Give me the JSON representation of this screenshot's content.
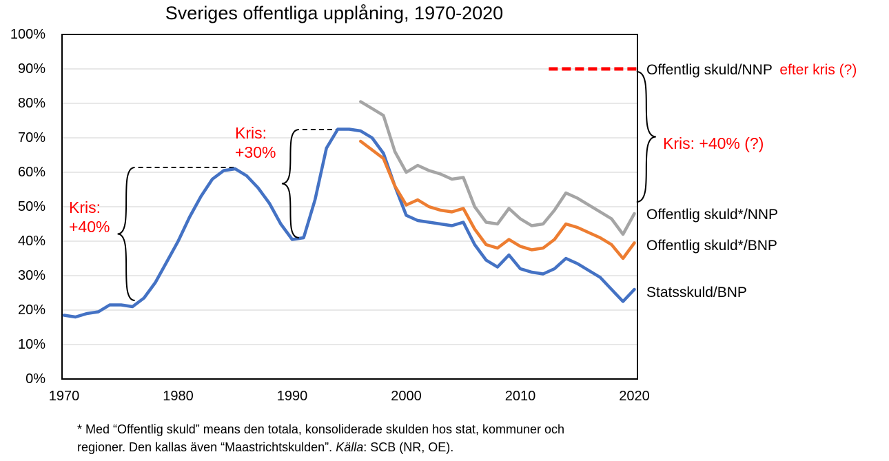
{
  "title": "Sveriges offentliga upplåning, 1970-2020",
  "chart_data": {
    "type": "line",
    "title": "Sveriges offentliga upplåning, 1970-2020",
    "xlim": [
      1970,
      2020.3
    ],
    "ylim": [
      0,
      100
    ],
    "grid": "horizontal",
    "grid_color": "#D9D9D9",
    "x_ticks": [
      1970,
      1980,
      1990,
      2000,
      2010,
      2020
    ],
    "y_ticks": [
      0,
      10,
      20,
      30,
      40,
      50,
      60,
      70,
      80,
      90,
      100
    ],
    "y_tick_suffix": "%",
    "series": [
      {
        "name": "Statsskuld/BNP",
        "color": "#4472C4",
        "start_year": 1970,
        "values": [
          18.5,
          18,
          19,
          19.5,
          21.5,
          21.5,
          21,
          23.5,
          28,
          34,
          40,
          47,
          53,
          58,
          60.5,
          61,
          59,
          55.5,
          51,
          45,
          40.5,
          41,
          52,
          67,
          72.5,
          72.5,
          72,
          70,
          65.5,
          56,
          47.5,
          46,
          45.5,
          45,
          44.5,
          45.5,
          39,
          34.5,
          32.5,
          36,
          32,
          31,
          30.5,
          32,
          35,
          33.5,
          31.5,
          29.5,
          26,
          22.5,
          26
        ]
      },
      {
        "name": "Offentlig skuld*/BNP",
        "color": "#ED7D31",
        "start_year": 1996,
        "values": [
          69,
          66.5,
          64,
          56,
          50.5,
          52,
          50,
          49,
          48.5,
          49.5,
          43.5,
          39,
          38,
          40.5,
          38.5,
          37.5,
          38,
          40.5,
          45,
          44,
          42.5,
          41,
          39,
          35,
          39.5
        ]
      },
      {
        "name": "Offentlig skuld*/NNP",
        "color": "#A5A5A5",
        "start_year": 1996,
        "values": [
          80.5,
          78.5,
          76.5,
          66,
          60,
          62,
          60.5,
          59.5,
          58,
          58.5,
          50,
          45.5,
          45,
          49.5,
          46.5,
          44.5,
          45,
          49,
          54,
          52.5,
          50.5,
          48.5,
          46.5,
          42,
          48
        ]
      }
    ],
    "projection_line": {
      "label": "Offentlig skuld/NNP",
      "label_suffix_red": "efter kris (?)",
      "value_pct": 90,
      "from_year": 2012.5,
      "to_year": 2020.3,
      "color": "#FF0000",
      "style": "dashed"
    },
    "crisis_annotations": [
      {
        "text_line1": "Kris:",
        "text_line2": "+40%",
        "brace": {
          "dir": "left",
          "arm_year": 1976.2,
          "top_pct": 61.4,
          "bottom_pct": 22.8
        },
        "dash": {
          "y_pct": 61.4,
          "from_year": 1976.5,
          "to_year": 1985
        }
      },
      {
        "text_line1": "Kris:",
        "text_line2": "+30%",
        "brace": {
          "dir": "left",
          "arm_year": 1990.6,
          "top_pct": 72.4,
          "bottom_pct": 41
        },
        "dash": {
          "y_pct": 72.4,
          "from_year": 1990.9,
          "to_year": 1993.9
        }
      },
      {
        "text": "Kris: +40% (?)",
        "brace": {
          "dir": "right",
          "arm_year": 2020.2,
          "top_pct": 89.2,
          "bottom_pct": 51.4
        }
      }
    ]
  },
  "footnote": {
    "line1": "* Med “Offentlig skuld” means den totala, konsoliderade skulden hos stat, kommuner och",
    "line2_pre": "regioner. Den kallas även “Maastrichtskulden”. ",
    "line2_italic": "Källa",
    "line2_post": ": SCB (NR, OE)."
  }
}
